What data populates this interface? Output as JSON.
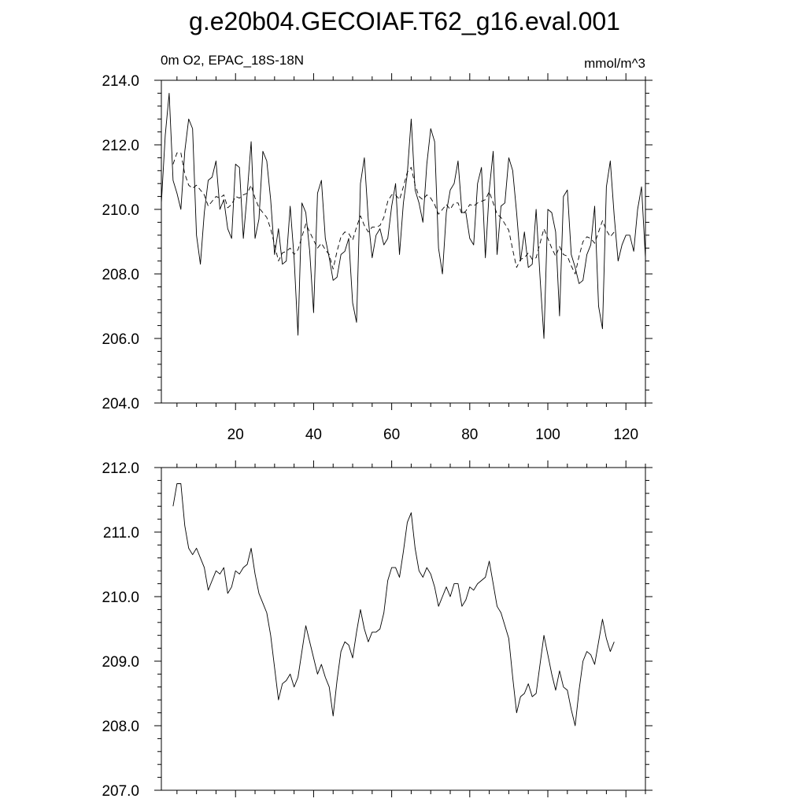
{
  "page": {
    "title": "g.e20b04.GECOIAF.T62_g16.eval.001"
  },
  "chart_data": [
    {
      "type": "line",
      "left_label": "0m O2, EPAC_18S-18N",
      "right_label": "mmol/m^3",
      "xlim": [
        1,
        125
      ],
      "ylim": [
        204.0,
        214.0
      ],
      "x_ticks": [
        20,
        40,
        60,
        80,
        100,
        120
      ],
      "x_tick_labels": [
        "20",
        "40",
        "60",
        "80",
        "100",
        "120"
      ],
      "y_ticks": [
        204,
        206,
        208,
        210,
        212,
        214
      ],
      "y_tick_labels": [
        "204.0",
        "206.0",
        "208.0",
        "210.0",
        "212.0",
        "214.0"
      ],
      "grid": false,
      "series": [
        {
          "style": "solid",
          "x_start": 1,
          "values": [
            210.2,
            212.3,
            213.6,
            210.9,
            210.5,
            210.0,
            211.8,
            212.8,
            212.5,
            209.2,
            208.3,
            209.9,
            210.9,
            211.0,
            211.5,
            210.0,
            210.3,
            209.4,
            209.1,
            211.4,
            211.3,
            209.1,
            210.5,
            212.1,
            209.1,
            209.7,
            211.8,
            211.5,
            210.3,
            208.6,
            209.4,
            208.3,
            208.4,
            210.1,
            208.5,
            206.1,
            210.2,
            209.9,
            208.7,
            206.8,
            210.5,
            210.9,
            209.1,
            208.5,
            207.8,
            207.9,
            208.6,
            208.7,
            209.1,
            207.1,
            206.5,
            210.8,
            211.6,
            209.7,
            208.5,
            209.2,
            209.4,
            208.9,
            209.1,
            210.1,
            210.8,
            208.6,
            210.2,
            211.1,
            212.8,
            210.6,
            210.2,
            209.6,
            211.4,
            212.5,
            212.1,
            208.8,
            208.0,
            209.9,
            210.6,
            210.8,
            211.5,
            209.9,
            209.9,
            209.1,
            208.9,
            210.8,
            211.3,
            208.5,
            210.6,
            211.8,
            208.6,
            210.1,
            210.2,
            211.6,
            211.2,
            209.9,
            208.4,
            209.3,
            208.2,
            208.3,
            210.0,
            207.9,
            206.0,
            210.0,
            209.9,
            209.3,
            206.7,
            210.4,
            210.6,
            208.6,
            208.2,
            207.7,
            207.8,
            208.6,
            208.9,
            210.1,
            207.0,
            206.3,
            210.7,
            211.5,
            209.8,
            208.4,
            208.9,
            209.2,
            209.2,
            208.7,
            210.0,
            210.7,
            208.5
          ]
        },
        {
          "style": "dashed",
          "x_start": 4,
          "values": [
            211.4,
            211.75,
            211.75,
            211.1,
            210.75,
            210.65,
            210.75,
            210.6,
            210.45,
            210.1,
            210.25,
            210.4,
            210.35,
            210.45,
            210.05,
            210.15,
            210.4,
            210.35,
            210.45,
            210.5,
            210.75,
            210.35,
            210.05,
            209.9,
            209.75,
            209.4,
            208.9,
            208.4,
            208.65,
            208.7,
            208.8,
            208.6,
            208.75,
            209.15,
            209.55,
            209.3,
            209.05,
            208.8,
            208.95,
            208.75,
            208.6,
            208.15,
            208.7,
            209.15,
            209.3,
            209.25,
            209.05,
            209.45,
            209.8,
            209.5,
            209.3,
            209.45,
            209.45,
            209.5,
            209.75,
            210.25,
            210.45,
            210.45,
            210.3,
            210.7,
            211.15,
            211.3,
            210.75,
            210.4,
            210.3,
            210.45,
            210.35,
            210.15,
            209.85,
            210.0,
            210.15,
            210.0,
            210.2,
            210.2,
            209.85,
            209.95,
            210.15,
            210.1,
            210.2,
            210.25,
            210.3,
            210.55,
            210.2,
            209.85,
            209.75,
            209.55,
            209.35,
            208.75,
            208.2,
            208.45,
            208.5,
            208.65,
            208.45,
            208.5,
            208.95,
            209.4,
            209.1,
            208.8,
            208.55,
            208.85,
            208.6,
            208.55,
            208.25,
            208.0,
            208.55,
            209.0,
            209.15,
            209.1,
            208.95,
            209.3,
            209.65,
            209.35,
            209.15,
            209.3
          ]
        }
      ]
    },
    {
      "type": "line",
      "xlim": [
        1,
        125
      ],
      "ylim": [
        207.0,
        212.0
      ],
      "y_ticks": [
        207,
        208,
        209,
        210,
        211,
        212
      ],
      "y_tick_labels": [
        "207.0",
        "208.0",
        "209.0",
        "210.0",
        "211.0",
        "212.0"
      ],
      "grid": false,
      "series": [
        {
          "style": "solid",
          "x_start": 4,
          "values": [
            211.4,
            211.75,
            211.75,
            211.1,
            210.75,
            210.65,
            210.75,
            210.6,
            210.45,
            210.1,
            210.25,
            210.4,
            210.35,
            210.45,
            210.05,
            210.15,
            210.4,
            210.35,
            210.45,
            210.5,
            210.75,
            210.35,
            210.05,
            209.9,
            209.75,
            209.4,
            208.9,
            208.4,
            208.65,
            208.7,
            208.8,
            208.6,
            208.75,
            209.15,
            209.55,
            209.3,
            209.05,
            208.8,
            208.95,
            208.75,
            208.6,
            208.15,
            208.7,
            209.15,
            209.3,
            209.25,
            209.05,
            209.45,
            209.8,
            209.5,
            209.3,
            209.45,
            209.45,
            209.5,
            209.75,
            210.25,
            210.45,
            210.45,
            210.3,
            210.7,
            211.15,
            211.3,
            210.75,
            210.4,
            210.3,
            210.45,
            210.35,
            210.15,
            209.85,
            210.0,
            210.15,
            210.0,
            210.2,
            210.2,
            209.85,
            209.95,
            210.15,
            210.1,
            210.2,
            210.25,
            210.3,
            210.55,
            210.2,
            209.85,
            209.75,
            209.55,
            209.35,
            208.75,
            208.2,
            208.45,
            208.5,
            208.65,
            208.45,
            208.5,
            208.95,
            209.4,
            209.1,
            208.8,
            208.55,
            208.85,
            208.6,
            208.55,
            208.25,
            208.0,
            208.55,
            209.0,
            209.15,
            209.1,
            208.95,
            209.3,
            209.65,
            209.35,
            209.15,
            209.3
          ]
        }
      ]
    }
  ]
}
